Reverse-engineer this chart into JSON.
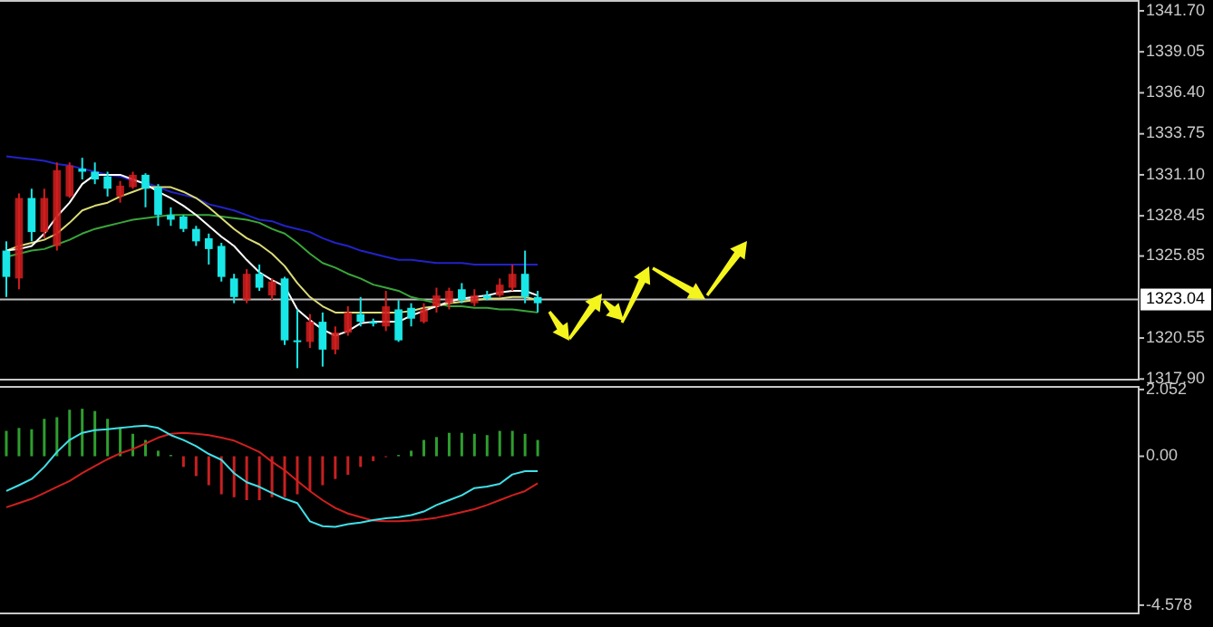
{
  "chart_data": [
    {
      "type": "candlestick",
      "categories": [
        null,
        null,
        null,
        null,
        null,
        null,
        null,
        null,
        null,
        null,
        null,
        null,
        null,
        null,
        null,
        null,
        null,
        null,
        null,
        null,
        null,
        null,
        null,
        null,
        null,
        null,
        null,
        null,
        null,
        null,
        null,
        null,
        null,
        null,
        null,
        null,
        null,
        null,
        null,
        null,
        null,
        null,
        null,
        null,
        null,
        null,
        null,
        null,
        null,
        null,
        null,
        null,
        null,
        null,
        null,
        null,
        null,
        null,
        null,
        null,
        null,
        null,
        null,
        null,
        null,
        null,
        null,
        null,
        null,
        null,
        null,
        null,
        null,
        null,
        null,
        null,
        null,
        null,
        null,
        null,
        null,
        null,
        null,
        null,
        null,
        null,
        null,
        null,
        null,
        null
      ],
      "ohlc": [
        [
          1326.2,
          1326.8,
          1323.2,
          1324.5
        ],
        [
          1324.4,
          1329.9,
          1323.7,
          1329.6
        ],
        [
          1329.6,
          1330.2,
          1326.8,
          1327.4
        ],
        [
          1327.4,
          1330.2,
          1327.0,
          1329.6
        ],
        [
          1326.5,
          1331.9,
          1326.2,
          1331.4
        ],
        [
          1329.7,
          1331.9,
          1329.6,
          1331.7
        ],
        [
          1331.5,
          1332.2,
          1330.8,
          1331.3
        ],
        [
          1331.3,
          1331.9,
          1330.5,
          1330.8
        ],
        [
          1331.0,
          1331.3,
          1329.7,
          1330.2
        ],
        [
          1329.7,
          1330.7,
          1329.3,
          1330.4
        ],
        [
          1330.3,
          1331.3,
          1330.2,
          1331.1
        ],
        [
          1331.1,
          1331.2,
          1329.0,
          1330.2
        ],
        [
          1330.3,
          1330.5,
          1327.8,
          1328.5
        ],
        [
          1328.5,
          1329.0,
          1327.8,
          1328.2
        ],
        [
          1328.4,
          1328.5,
          1327.4,
          1327.6
        ],
        [
          1327.6,
          1327.8,
          1326.5,
          1326.8
        ],
        [
          1327.0,
          1327.3,
          1325.3,
          1326.3
        ],
        [
          1326.5,
          1326.7,
          1324.2,
          1324.5
        ],
        [
          1324.4,
          1324.7,
          1322.8,
          1323.2
        ],
        [
          1323.0,
          1325.0,
          1322.8,
          1324.7
        ],
        [
          1324.7,
          1325.3,
          1323.6,
          1323.8
        ],
        [
          1323.3,
          1324.4,
          1323.0,
          1324.2
        ],
        [
          1324.4,
          1324.5,
          1320.1,
          1320.4
        ],
        [
          1320.4,
          1322.4,
          1318.6,
          1320.3
        ],
        [
          1320.3,
          1322.1,
          1319.9,
          1321.6
        ],
        [
          1321.6,
          1322.2,
          1318.7,
          1319.8
        ],
        [
          1319.8,
          1321.3,
          1319.5,
          1320.9
        ],
        [
          1320.9,
          1322.6,
          1320.7,
          1322.2
        ],
        [
          1322.1,
          1323.2,
          1321.3,
          1321.6
        ],
        [
          1321.6,
          1321.8,
          1321.3,
          1321.5
        ],
        [
          1321.3,
          1323.6,
          1321.0,
          1322.6
        ],
        [
          1322.4,
          1323.0,
          1320.3,
          1320.4
        ],
        [
          1322.5,
          1322.8,
          1321.3,
          1321.8
        ],
        [
          1321.6,
          1322.8,
          1321.5,
          1322.4
        ],
        [
          1322.6,
          1323.8,
          1322.2,
          1323.3
        ],
        [
          1322.8,
          1323.8,
          1322.4,
          1323.6
        ],
        [
          1323.7,
          1324.1,
          1322.8,
          1323.0
        ],
        [
          1322.8,
          1323.7,
          1322.6,
          1323.3
        ],
        [
          1323.3,
          1323.6,
          1323.0,
          1323.1
        ],
        [
          1323.3,
          1324.4,
          1323.2,
          1324.0
        ],
        [
          1323.8,
          1325.3,
          1323.6,
          1324.7
        ],
        [
          1324.7,
          1326.2,
          1322.8,
          1323.2
        ],
        [
          1323.2,
          1323.6,
          1322.2,
          1322.8
        ],
        null,
        null,
        null,
        null,
        null,
        null,
        null,
        null,
        null,
        null,
        null,
        null,
        null,
        null,
        null,
        null,
        null,
        null,
        null,
        null,
        null,
        null,
        null,
        null,
        null,
        null,
        null,
        null,
        null,
        null,
        null,
        null,
        null,
        null,
        null,
        null,
        null,
        null,
        null,
        null,
        null,
        null,
        null,
        null,
        null,
        null,
        null
      ],
      "colors": [
        "#19e6e6",
        "#d21e1e",
        "#19e6e6",
        "#d21e1e",
        "#d21e1e",
        "#d21e1e",
        "#19e6e6",
        "#19e6e6",
        "#19e6e6",
        "#d21e1e",
        "#d21e1e",
        "#19e6e6",
        "#19e6e6",
        "#19e6e6",
        "#19e6e6",
        "#19e6e6",
        "#19e6e6",
        "#19e6e6",
        "#19e6e6",
        "#d21e1e",
        "#19e6e6",
        "#d21e1e",
        "#19e6e6",
        "#19e6e6",
        "#d21e1e",
        "#19e6e6",
        "#d21e1e",
        "#d21e1e",
        "#19e6e6",
        "#19e6e6",
        "#d21e1e",
        "#19e6e6",
        "#19e6e6",
        "#d21e1e",
        "#d21e1e",
        "#d21e1e",
        "#19e6e6",
        "#d21e1e",
        "#19e6e6",
        "#d21e1e",
        "#d21e1e",
        "#19e6e6",
        "#19e6e6",
        null,
        null,
        null,
        null,
        null,
        null,
        null,
        null,
        null,
        null,
        null,
        null,
        null,
        null,
        null,
        null,
        null,
        null,
        null,
        null,
        null,
        null,
        null,
        null,
        null,
        null,
        null,
        null,
        null,
        null,
        null,
        null,
        null,
        null,
        null,
        null,
        null,
        null,
        null,
        null,
        null,
        null,
        null,
        null,
        null,
        null,
        null
      ],
      "series": [
        {
          "type": "line",
          "color": "#2222c8",
          "values": [
            1332.3,
            1332.2,
            1332.1,
            1332.0,
            1331.8,
            1331.7,
            1331.5,
            1331.3,
            1331.1,
            1331.0,
            1330.7,
            1330.6,
            1330.3,
            1330.0,
            1329.8,
            1329.6,
            1329.2,
            1329.0,
            1328.8,
            1328.5,
            1328.2,
            1328.1,
            1327.8,
            1327.6,
            1327.4,
            1327.0,
            1326.7,
            1326.5,
            1326.2,
            1326.0,
            1325.8,
            1325.6,
            1325.6,
            1325.5,
            1325.4,
            1325.4,
            1325.4,
            1325.3,
            1325.3,
            1325.3,
            1325.3,
            1325.3,
            1325.3,
            null,
            null,
            null,
            null,
            null,
            null,
            null,
            null,
            null,
            null,
            null,
            null,
            null,
            null,
            null,
            null,
            null,
            null,
            null,
            null,
            null,
            null,
            null,
            null,
            null,
            null,
            null,
            null,
            null,
            null,
            null,
            null,
            null,
            null,
            null,
            null,
            null,
            null,
            null,
            null,
            null,
            null,
            null,
            null,
            null,
            null,
            null
          ]
        },
        {
          "type": "line",
          "color": "#3aa63a",
          "values": [
            1325.8,
            1326.0,
            1326.2,
            1326.3,
            1326.6,
            1326.9,
            1327.3,
            1327.6,
            1327.8,
            1328.0,
            1328.2,
            1328.3,
            1328.4,
            1328.5,
            1328.5,
            1328.5,
            1328.5,
            1328.4,
            1328.3,
            1328.2,
            1328.0,
            1327.6,
            1327.3,
            1326.7,
            1326.0,
            1325.4,
            1325.1,
            1324.7,
            1324.4,
            1324.0,
            1323.8,
            1323.6,
            1323.2,
            1323.0,
            1322.8,
            1322.6,
            1322.6,
            1322.5,
            1322.5,
            1322.4,
            1322.4,
            1322.3,
            1322.2,
            null,
            null,
            null,
            null,
            null,
            null,
            null,
            null,
            null,
            null,
            null,
            null,
            null,
            null,
            null,
            null,
            null,
            null,
            null,
            null,
            null,
            null,
            null,
            null,
            null,
            null,
            null,
            null,
            null,
            null,
            null,
            null,
            null,
            null,
            null,
            null,
            null,
            null,
            null,
            null,
            null,
            null,
            null,
            null,
            null,
            null,
            null
          ]
        },
        {
          "type": "line",
          "color": "#dcdc78",
          "values": [
            1326.2,
            1326.5,
            1326.7,
            1326.9,
            1327.3,
            1328.0,
            1328.8,
            1329.1,
            1329.3,
            1329.7,
            1330.0,
            1330.3,
            1330.3,
            1330.3,
            1330.0,
            1329.6,
            1329.0,
            1328.3,
            1327.6,
            1327.0,
            1326.6,
            1326.0,
            1325.2,
            1324.1,
            1323.2,
            1322.6,
            1322.2,
            1322.2,
            1322.2,
            1322.2,
            1322.2,
            1322.2,
            1322.3,
            1322.5,
            1322.6,
            1322.8,
            1322.9,
            1323.0,
            1323.1,
            1323.1,
            1323.2,
            1323.2,
            1323.0,
            null,
            null,
            null,
            null,
            null,
            null,
            null,
            null,
            null,
            null,
            null,
            null,
            null,
            null,
            null,
            null,
            null,
            null,
            null,
            null,
            null,
            null,
            null,
            null,
            null,
            null,
            null,
            null,
            null,
            null,
            null,
            null,
            null,
            null,
            null,
            null,
            null,
            null,
            null,
            null,
            null,
            null,
            null,
            null,
            null,
            null,
            null
          ]
        },
        {
          "type": "line",
          "color": "#ffffff",
          "values": [
            1326.2,
            1326.3,
            1326.5,
            1327.3,
            1328.4,
            1329.3,
            1330.5,
            1331.1,
            1331.1,
            1331.1,
            1330.8,
            1330.5,
            1330.0,
            1329.6,
            1329.1,
            1328.5,
            1327.8,
            1327.1,
            1326.5,
            1325.6,
            1324.8,
            1324.3,
            1323.9,
            1322.4,
            1321.7,
            1321.1,
            1320.7,
            1321.0,
            1321.5,
            1321.6,
            1321.6,
            1321.6,
            1322.0,
            1322.3,
            1322.6,
            1322.9,
            1323.1,
            1323.2,
            1323.3,
            1323.5,
            1323.6,
            1323.6,
            1323.3,
            null,
            null,
            null,
            null,
            null,
            null,
            null,
            null,
            null,
            null,
            null,
            null,
            null,
            null,
            null,
            null,
            null,
            null,
            null,
            null,
            null,
            null,
            null,
            null,
            null,
            null,
            null,
            null,
            null,
            null,
            null,
            null,
            null,
            null,
            null,
            null,
            null,
            null,
            null,
            null,
            null,
            null,
            null,
            null,
            null,
            null,
            null
          ]
        }
      ],
      "ylim": [
        1317.8,
        1342.4
      ],
      "yticks": [
        {
          "value": 1341.7,
          "label": "1341.70"
        },
        {
          "value": 1339.05,
          "label": "1339.05"
        },
        {
          "value": 1336.4,
          "label": "1336.40"
        },
        {
          "value": 1333.75,
          "label": "1333.75"
        },
        {
          "value": 1331.1,
          "label": "1331.10"
        },
        {
          "value": 1328.45,
          "label": "1328.45"
        },
        {
          "value": 1325.85,
          "label": "1325.85"
        },
        {
          "value": 1320.55,
          "label": "1320.55"
        },
        {
          "value": 1317.9,
          "label": "1317.90"
        }
      ],
      "ref_lines": [
        {
          "axis": "y",
          "value": 1323.04,
          "label": "1323.04",
          "color": "#c0c0c0"
        }
      ],
      "tick_labels": "y"
    },
    {
      "type": "bar",
      "categories": [
        null,
        null,
        null,
        null,
        null,
        null,
        null,
        null,
        null,
        null,
        null,
        null,
        null,
        null,
        null,
        null,
        null,
        null,
        null,
        null,
        null,
        null,
        null,
        null,
        null,
        null,
        null,
        null,
        null,
        null,
        null,
        null,
        null,
        null,
        null,
        null,
        null,
        null,
        null,
        null,
        null,
        null,
        null,
        null,
        null,
        null,
        null,
        null,
        null,
        null,
        null,
        null,
        null,
        null,
        null,
        null,
        null,
        null,
        null,
        null,
        null,
        null,
        null,
        null,
        null,
        null,
        null,
        null,
        null,
        null,
        null,
        null,
        null,
        null,
        null,
        null,
        null,
        null,
        null,
        null,
        null,
        null,
        null,
        null,
        null,
        null,
        null,
        null,
        null,
        null
      ],
      "series": [
        {
          "values": [
            0.78,
            0.87,
            0.83,
            1.15,
            1.2,
            1.43,
            1.46,
            1.39,
            1.15,
            0.87,
            0.69,
            0.5,
            0.17,
            0.04,
            -0.33,
            -0.61,
            -0.89,
            -1.17,
            -1.26,
            -1.35,
            -1.35,
            -1.26,
            -1.26,
            -1.17,
            -1.07,
            -0.89,
            -0.7,
            -0.57,
            -0.33,
            -0.15,
            -0.02,
            0.04,
            0.17,
            0.5,
            0.59,
            0.72,
            0.72,
            0.69,
            0.65,
            0.78,
            0.78,
            0.69,
            0.5,
            null,
            null,
            null,
            null,
            null,
            null,
            null,
            null,
            null,
            null,
            null,
            null,
            null,
            null,
            null,
            null,
            null,
            null,
            null,
            null,
            null,
            null,
            null,
            null,
            null,
            null,
            null,
            null,
            null,
            null,
            null,
            null,
            null,
            null,
            null,
            null,
            null,
            null,
            null,
            null,
            null,
            null,
            null,
            null,
            null,
            null,
            null
          ],
          "colors": [
            "#2e9e2e",
            "#2e9e2e",
            "#2e9e2e",
            "#2e9e2e",
            "#2e9e2e",
            "#2e9e2e",
            "#2e9e2e",
            "#2e9e2e",
            "#2e9e2e",
            "#2e9e2e",
            "#2e9e2e",
            "#2e9e2e",
            "#2e9e2e",
            "#2e9e2e",
            "#c82020",
            "#c82020",
            "#c82020",
            "#c82020",
            "#c82020",
            "#c82020",
            "#c82020",
            "#c82020",
            "#c82020",
            "#c82020",
            "#c82020",
            "#c82020",
            "#c82020",
            "#c82020",
            "#c82020",
            "#c82020",
            "#c82020",
            "#2e9e2e",
            "#2e9e2e",
            "#2e9e2e",
            "#2e9e2e",
            "#2e9e2e",
            "#2e9e2e",
            "#2e9e2e",
            "#2e9e2e",
            "#2e9e2e",
            "#2e9e2e",
            "#2e9e2e",
            "#2e9e2e",
            null,
            null,
            null,
            null,
            null,
            null,
            null,
            null,
            null,
            null,
            null,
            null,
            null,
            null,
            null,
            null,
            null,
            null,
            null,
            null,
            null,
            null,
            null,
            null,
            null,
            null,
            null,
            null,
            null,
            null,
            null,
            null,
            null,
            null,
            null,
            null,
            null,
            null,
            null,
            null,
            null,
            null,
            null,
            null,
            null,
            null,
            null
          ]
        },
        {
          "type": "line",
          "color": "#d02020",
          "values": [
            -1.57,
            -1.44,
            -1.31,
            -1.13,
            -0.94,
            -0.76,
            -0.52,
            -0.3,
            -0.09,
            0.09,
            0.22,
            0.39,
            0.57,
            0.69,
            0.72,
            0.69,
            0.65,
            0.57,
            0.48,
            0.31,
            0.13,
            -0.17,
            -0.43,
            -0.76,
            -1.07,
            -1.35,
            -1.59,
            -1.76,
            -1.87,
            -1.98,
            -2.0,
            -2.0,
            -1.98,
            -1.94,
            -1.89,
            -1.81,
            -1.72,
            -1.63,
            -1.5,
            -1.35,
            -1.2,
            -1.07,
            -0.83,
            null,
            null,
            null,
            null,
            null,
            null,
            null,
            null,
            null,
            null,
            null,
            null,
            null,
            null,
            null,
            null,
            null,
            null,
            null,
            null,
            null,
            null,
            null,
            null,
            null,
            null,
            null,
            null,
            null,
            null,
            null,
            null,
            null,
            null,
            null,
            null,
            null,
            null,
            null,
            null,
            null,
            null,
            null,
            null,
            null,
            null,
            null
          ]
        },
        {
          "type": "line",
          "color": "#40e0e8",
          "values": [
            -1.07,
            -0.89,
            -0.7,
            -0.33,
            0.13,
            0.5,
            0.72,
            0.8,
            0.83,
            0.87,
            0.91,
            0.94,
            0.87,
            0.65,
            0.5,
            0.31,
            0.07,
            -0.11,
            -0.52,
            -0.8,
            -0.94,
            -1.13,
            -1.31,
            -1.44,
            -2.0,
            -2.15,
            -2.17,
            -2.09,
            -2.04,
            -1.96,
            -1.91,
            -1.87,
            -1.81,
            -1.7,
            -1.5,
            -1.35,
            -1.2,
            -0.98,
            -0.93,
            -0.85,
            -0.56,
            -0.46,
            -0.46,
            null,
            null,
            null,
            null,
            null,
            null,
            null,
            null,
            null,
            null,
            null,
            null,
            null,
            null,
            null,
            null,
            null,
            null,
            null,
            null,
            null,
            null,
            null,
            null,
            null,
            null,
            null,
            null,
            null,
            null,
            null,
            null,
            null,
            null,
            null,
            null,
            null,
            null,
            null,
            null,
            null,
            null,
            null,
            null,
            null,
            null,
            null
          ]
        }
      ],
      "ylim": [
        -4.86,
        2.16
      ],
      "yticks": [
        2.052,
        {
          "value": 0,
          "label": "0.00"
        },
        -4.578
      ],
      "tick_labels": "y"
    }
  ]
}
